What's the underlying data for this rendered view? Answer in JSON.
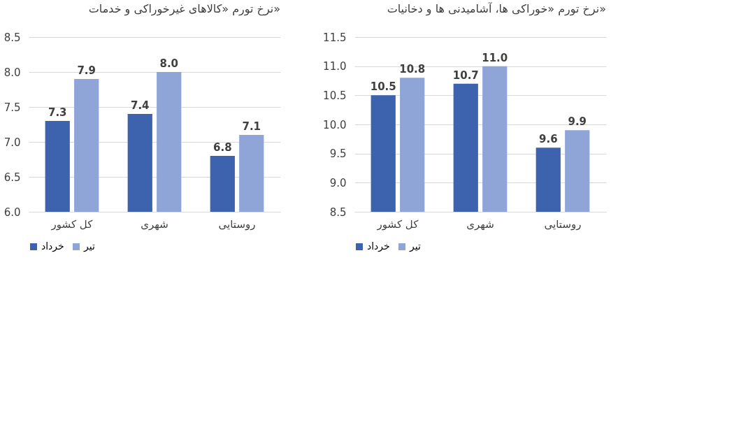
{
  "chart_data": [
    {
      "type": "bar",
      "title": "نرخ تورم «کالاهای غیرخوراکی و خدمات»",
      "categories": [
        "کل کشور",
        "شهری",
        "روستایی"
      ],
      "series": [
        {
          "name": "خرداد",
          "color": "#3d63ae",
          "values": [
            7.3,
            7.4,
            6.8
          ],
          "value_labels": [
            "7.3",
            "7.4",
            "6.8"
          ]
        },
        {
          "name": "تیر",
          "color": "#8fa5d8",
          "values": [
            7.9,
            8.0,
            7.1
          ],
          "value_labels": [
            "7.9",
            "8.0",
            "7.1"
          ]
        }
      ],
      "ylim": [
        6,
        8.5
      ],
      "yticks": [
        {
          "value": 6,
          "label": "6.0"
        },
        6.5,
        {
          "value": 7,
          "label": "7.0"
        },
        7.5,
        {
          "value": 8,
          "label": "8.0"
        },
        8.5
      ],
      "grid": "y",
      "legend": "bottom"
    },
    {
      "type": "bar",
      "title": "نرخ تورم «خوراکی ها، آشامیدنی ها و دخانیات»",
      "categories": [
        "کل کشور",
        "شهری",
        "روستایی"
      ],
      "series": [
        {
          "name": "خرداد",
          "color": "#3d63ae",
          "values": [
            10.5,
            10.7,
            9.6
          ],
          "value_labels": [
            "10.5",
            "10.7",
            "9.6"
          ]
        },
        {
          "name": "تیر",
          "color": "#8fa5d8",
          "values": [
            10.8,
            11.0,
            9.9
          ],
          "value_labels": [
            "10.8",
            "11.0",
            "9.9"
          ]
        }
      ],
      "ylim": [
        8.5,
        11.5
      ],
      "yticks": [
        8.5,
        {
          "value": 9,
          "label": "9.0"
        },
        9.5,
        {
          "value": 10,
          "label": "10.0"
        },
        10.5,
        {
          "value": 11,
          "label": "11.0"
        },
        11.5
      ],
      "grid": "y",
      "legend": "bottom"
    }
  ]
}
